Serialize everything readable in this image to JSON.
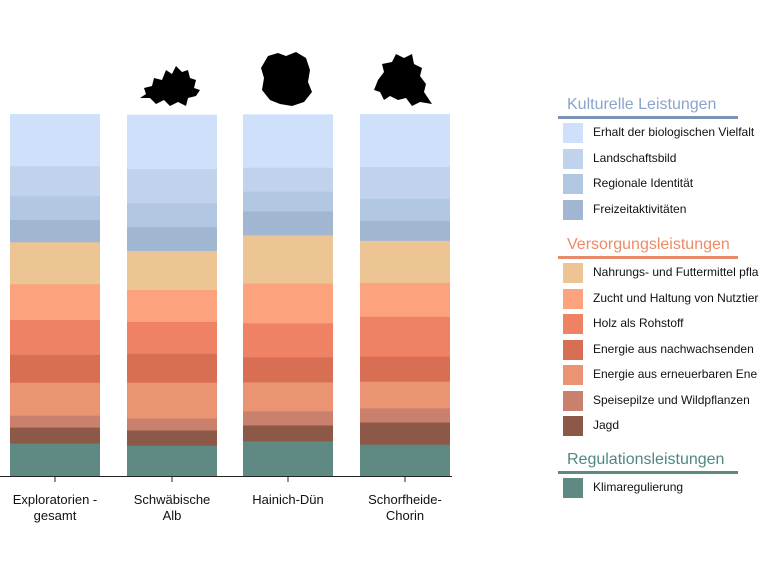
{
  "chart_data": {
    "type": "bar",
    "stacked": true,
    "normalized": true,
    "categories": [
      "Exploratorien -\ngesamt",
      "Schwäbische\nAlb",
      "Hainich-Dün",
      "Schorfheide-\nChorin"
    ],
    "ylim": [
      0,
      100
    ],
    "series": [
      {
        "name": "Klimaregulierung",
        "group": "Regulationsleistungen",
        "color": "#5f8983",
        "values": [
          9.1,
          8.5,
          9.7,
          8.8
        ]
      },
      {
        "name": "Jagd",
        "group": "Versorgungsleistungen",
        "color": "#8c5848",
        "values": [
          4.4,
          4.2,
          4.4,
          6.1
        ]
      },
      {
        "name": "Speisepilze und Wildpflanzen",
        "group": "Versorgungsleistungen",
        "color": "#c9806c",
        "values": [
          3.3,
          3.3,
          3.9,
          3.9
        ]
      },
      {
        "name": "Energie aus erneuerbaren Ene",
        "group": "Versorgungsleistungen",
        "color": "#ea9473",
        "values": [
          9.1,
          9.9,
          8.0,
          7.4
        ]
      },
      {
        "name": "Energie aus nachwachsenden",
        "group": "Versorgungsleistungen",
        "color": "#d86e54",
        "values": [
          7.7,
          8.0,
          6.9,
          6.9
        ]
      },
      {
        "name": "Holz als Rohstoff",
        "group": "Versorgungsleistungen",
        "color": "#ef8164",
        "values": [
          9.6,
          8.8,
          9.4,
          11.0
        ]
      },
      {
        "name": "Zucht und Haltung von Nutztier",
        "group": "Versorgungsleistungen",
        "color": "#fca27d",
        "values": [
          9.9,
          8.8,
          11.0,
          9.4
        ]
      },
      {
        "name": "Nahrungs- und Futtermittel pfla",
        "group": "Versorgungsleistungen",
        "color": "#edc595",
        "values": [
          11.6,
          10.8,
          13.3,
          11.6
        ]
      },
      {
        "name": "Freizeitaktivitäten",
        "group": "Kulturelle Leistungen",
        "color": "#a1b6d1",
        "values": [
          6.1,
          6.6,
          6.6,
          5.5
        ]
      },
      {
        "name": "Regionale Identität",
        "group": "Kulturelle Leistungen",
        "color": "#b1c7e2",
        "values": [
          6.6,
          6.6,
          5.5,
          6.1
        ]
      },
      {
        "name": "Landschaftsbild",
        "group": "Kulturelle Leistungen",
        "color": "#c1d3ec",
        "values": [
          8.3,
          9.4,
          6.6,
          8.8
        ]
      },
      {
        "name": "Erhalt der biologischen Vielfalt",
        "group": "Kulturelle Leistungen",
        "color": "#cfe1fa",
        "values": [
          14.3,
          14.9,
          14.6,
          14.5
        ]
      }
    ],
    "legend_position": "right",
    "grid": false
  },
  "legend": {
    "groups": [
      {
        "title": "Kulturelle Leistungen",
        "color": "#8ba4cc",
        "line_color": "#7b93b5",
        "items": [
          {
            "label": "Erhalt der biologischen Vielfalt",
            "color": "#cfe1fa"
          },
          {
            "label": "Landschaftsbild",
            "color": "#c1d3ec"
          },
          {
            "label": "Regionale Identität",
            "color": "#b1c7e2"
          },
          {
            "label": "Freizeitaktivitäten",
            "color": "#a1b6d1"
          }
        ]
      },
      {
        "title": "Versorgungsleistungen",
        "color": "#ef8b66",
        "line_color": "#e8896a",
        "items": [
          {
            "label": "Nahrungs- und Futtermittel pfla",
            "color": "#edc595"
          },
          {
            "label": "Zucht und Haltung von Nutztier",
            "color": "#fca27d"
          },
          {
            "label": "Holz als Rohstoff",
            "color": "#ef8164"
          },
          {
            "label": "Energie aus nachwachsenden",
            "color": "#d86e54"
          },
          {
            "label": "Energie aus erneuerbaren Ene",
            "color": "#ea9473"
          },
          {
            "label": "Speisepilze und Wildpflanzen",
            "color": "#c9806c"
          },
          {
            "label": "Jagd",
            "color": "#8c5848"
          }
        ]
      },
      {
        "title": "Regulationsleistungen",
        "color": "#4f8882",
        "line_color": "#5f8983",
        "items": [
          {
            "label": "Klimaregulierung",
            "color": "#5f8983"
          }
        ]
      }
    ]
  }
}
